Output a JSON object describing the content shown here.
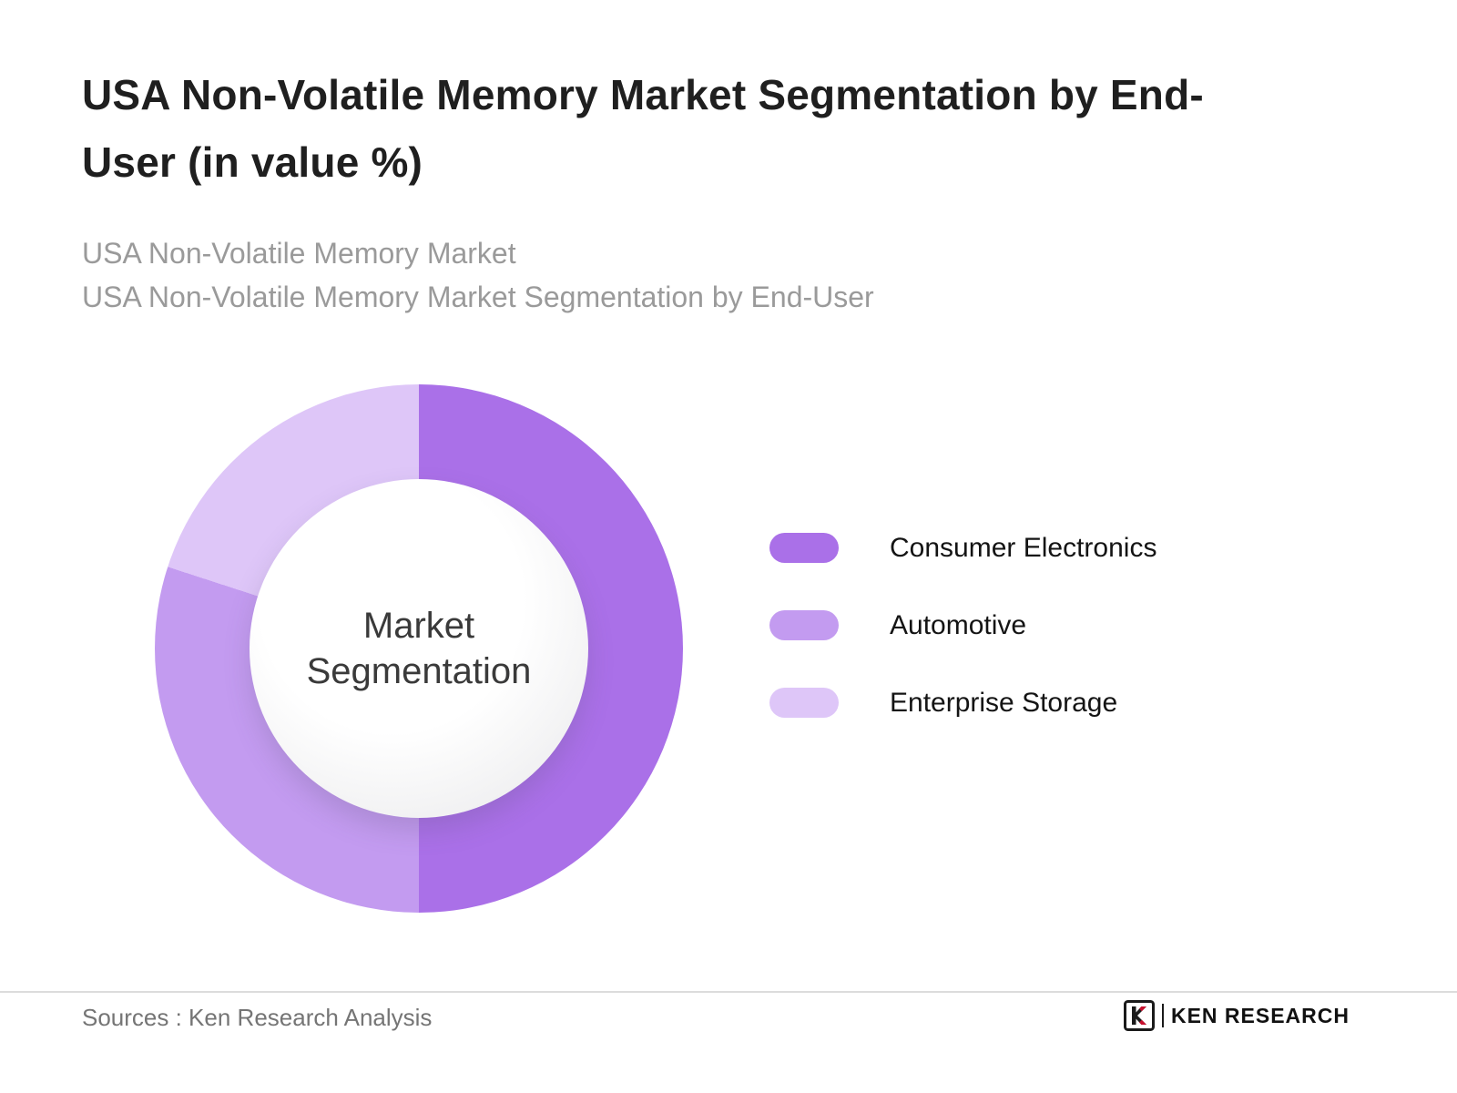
{
  "page": {
    "title_lines": [
      "USA Non-Volatile Memory Market Segmentation by End-",
      "User (in value %)"
    ],
    "subtitle_lines": [
      "USA Non-Volatile Memory Market",
      "USA Non-Volatile Memory Market Segmentation by End-User"
    ],
    "footer_source": "Sources : Ken Research Analysis",
    "logo_text": "KEN RESEARCH"
  },
  "chart_data": {
    "type": "pie",
    "donut": true,
    "title": "USA Non-Volatile Memory Market Segmentation by End-User (in value %)",
    "center_label": "Market Segmentation",
    "categories": [
      "Consumer Electronics",
      "Automotive",
      "Enterprise Storage"
    ],
    "values": [
      50,
      30,
      20
    ],
    "colors": [
      "#aa70e8",
      "#c39bf0",
      "#dec6f8"
    ],
    "start_angle_deg": 0,
    "direction": "clockwise",
    "legend_position": "right",
    "data_labels_shown": false
  }
}
